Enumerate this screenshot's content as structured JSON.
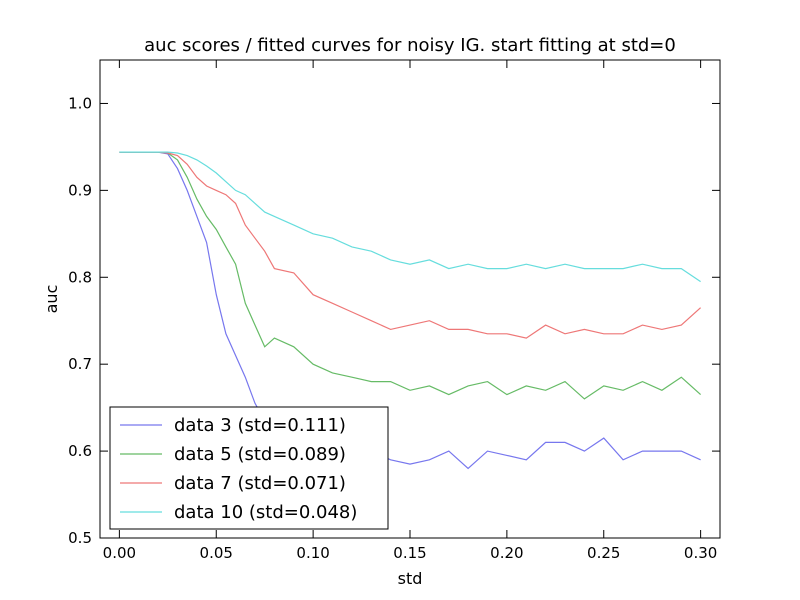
{
  "chart_data": {
    "type": "line",
    "title": "auc scores / fitted curves for noisy IG. start fitting at std=0",
    "xlabel": "std",
    "ylabel": "auc",
    "xlim": [
      -0.01,
      0.31
    ],
    "ylim": [
      0.5,
      1.05
    ],
    "x_ticks": [
      0.0,
      0.05,
      0.1,
      0.15,
      0.2,
      0.25,
      0.3
    ],
    "x_tick_labels": [
      "0.00",
      "0.05",
      "0.10",
      "0.15",
      "0.20",
      "0.25",
      "0.30"
    ],
    "y_ticks": [
      0.5,
      0.6,
      0.7,
      0.8,
      0.9,
      1.0
    ],
    "y_tick_labels": [
      "0.5",
      "0.6",
      "0.7",
      "0.8",
      "0.9",
      "1.0"
    ],
    "grid": false,
    "legend_position": "bottom-left",
    "series": [
      {
        "name": "data 3 (std=0.111)",
        "color": "#7777ee",
        "points": [
          [
            0.0,
            0.944
          ],
          [
            0.02,
            0.944
          ],
          [
            0.025,
            0.942
          ],
          [
            0.03,
            0.925
          ],
          [
            0.035,
            0.9
          ],
          [
            0.04,
            0.87
          ],
          [
            0.045,
            0.84
          ],
          [
            0.05,
            0.78
          ],
          [
            0.055,
            0.735
          ],
          [
            0.06,
            0.71
          ],
          [
            0.065,
            0.685
          ],
          [
            0.07,
            0.655
          ],
          [
            0.075,
            0.635
          ],
          [
            0.08,
            0.62
          ],
          [
            0.09,
            0.61
          ],
          [
            0.1,
            0.6
          ],
          [
            0.11,
            0.595
          ],
          [
            0.12,
            0.58
          ],
          [
            0.13,
            0.6
          ],
          [
            0.14,
            0.59
          ],
          [
            0.15,
            0.585
          ],
          [
            0.16,
            0.59
          ],
          [
            0.17,
            0.6
          ],
          [
            0.18,
            0.58
          ],
          [
            0.19,
            0.6
          ],
          [
            0.2,
            0.595
          ],
          [
            0.21,
            0.59
          ],
          [
            0.22,
            0.61
          ],
          [
            0.23,
            0.61
          ],
          [
            0.24,
            0.6
          ],
          [
            0.25,
            0.615
          ],
          [
            0.26,
            0.59
          ],
          [
            0.27,
            0.6
          ],
          [
            0.28,
            0.6
          ],
          [
            0.29,
            0.6
          ],
          [
            0.3,
            0.59
          ]
        ]
      },
      {
        "name": "data 5 (std=0.089)",
        "color": "#66bb66",
        "points": [
          [
            0.0,
            0.944
          ],
          [
            0.02,
            0.944
          ],
          [
            0.025,
            0.943
          ],
          [
            0.03,
            0.935
          ],
          [
            0.035,
            0.915
          ],
          [
            0.04,
            0.89
          ],
          [
            0.045,
            0.87
          ],
          [
            0.05,
            0.855
          ],
          [
            0.055,
            0.835
          ],
          [
            0.06,
            0.815
          ],
          [
            0.065,
            0.77
          ],
          [
            0.07,
            0.745
          ],
          [
            0.075,
            0.72
          ],
          [
            0.08,
            0.73
          ],
          [
            0.09,
            0.72
          ],
          [
            0.1,
            0.7
          ],
          [
            0.11,
            0.69
          ],
          [
            0.12,
            0.685
          ],
          [
            0.13,
            0.68
          ],
          [
            0.14,
            0.68
          ],
          [
            0.15,
            0.67
          ],
          [
            0.16,
            0.675
          ],
          [
            0.17,
            0.665
          ],
          [
            0.18,
            0.675
          ],
          [
            0.19,
            0.68
          ],
          [
            0.2,
            0.665
          ],
          [
            0.21,
            0.675
          ],
          [
            0.22,
            0.67
          ],
          [
            0.23,
            0.68
          ],
          [
            0.24,
            0.66
          ],
          [
            0.25,
            0.675
          ],
          [
            0.26,
            0.67
          ],
          [
            0.27,
            0.68
          ],
          [
            0.28,
            0.67
          ],
          [
            0.29,
            0.685
          ],
          [
            0.3,
            0.665
          ]
        ]
      },
      {
        "name": "data 7 (std=0.071)",
        "color": "#ee7777",
        "points": [
          [
            0.0,
            0.944
          ],
          [
            0.02,
            0.944
          ],
          [
            0.025,
            0.943
          ],
          [
            0.03,
            0.94
          ],
          [
            0.035,
            0.93
          ],
          [
            0.04,
            0.915
          ],
          [
            0.045,
            0.905
          ],
          [
            0.05,
            0.9
          ],
          [
            0.055,
            0.895
          ],
          [
            0.06,
            0.885
          ],
          [
            0.065,
            0.86
          ],
          [
            0.07,
            0.845
          ],
          [
            0.075,
            0.83
          ],
          [
            0.08,
            0.81
          ],
          [
            0.09,
            0.805
          ],
          [
            0.1,
            0.78
          ],
          [
            0.11,
            0.77
          ],
          [
            0.12,
            0.76
          ],
          [
            0.13,
            0.75
          ],
          [
            0.14,
            0.74
          ],
          [
            0.15,
            0.745
          ],
          [
            0.16,
            0.75
          ],
          [
            0.17,
            0.74
          ],
          [
            0.18,
            0.74
          ],
          [
            0.19,
            0.735
          ],
          [
            0.2,
            0.735
          ],
          [
            0.21,
            0.73
          ],
          [
            0.22,
            0.745
          ],
          [
            0.23,
            0.735
          ],
          [
            0.24,
            0.74
          ],
          [
            0.25,
            0.735
          ],
          [
            0.26,
            0.735
          ],
          [
            0.27,
            0.745
          ],
          [
            0.28,
            0.74
          ],
          [
            0.29,
            0.745
          ],
          [
            0.3,
            0.765
          ]
        ]
      },
      {
        "name": "data 10 (std=0.048)",
        "color": "#66dddd",
        "points": [
          [
            0.0,
            0.944
          ],
          [
            0.02,
            0.944
          ],
          [
            0.025,
            0.944
          ],
          [
            0.03,
            0.943
          ],
          [
            0.035,
            0.94
          ],
          [
            0.04,
            0.935
          ],
          [
            0.045,
            0.928
          ],
          [
            0.05,
            0.92
          ],
          [
            0.055,
            0.91
          ],
          [
            0.06,
            0.9
          ],
          [
            0.065,
            0.895
          ],
          [
            0.07,
            0.885
          ],
          [
            0.075,
            0.875
          ],
          [
            0.08,
            0.87
          ],
          [
            0.09,
            0.86
          ],
          [
            0.1,
            0.85
          ],
          [
            0.11,
            0.845
          ],
          [
            0.12,
            0.835
          ],
          [
            0.13,
            0.83
          ],
          [
            0.14,
            0.82
          ],
          [
            0.15,
            0.815
          ],
          [
            0.16,
            0.82
          ],
          [
            0.17,
            0.81
          ],
          [
            0.18,
            0.815
          ],
          [
            0.19,
            0.81
          ],
          [
            0.2,
            0.81
          ],
          [
            0.21,
            0.815
          ],
          [
            0.22,
            0.81
          ],
          [
            0.23,
            0.815
          ],
          [
            0.24,
            0.81
          ],
          [
            0.25,
            0.81
          ],
          [
            0.26,
            0.81
          ],
          [
            0.27,
            0.815
          ],
          [
            0.28,
            0.81
          ],
          [
            0.29,
            0.81
          ],
          [
            0.3,
            0.795
          ]
        ]
      }
    ]
  }
}
